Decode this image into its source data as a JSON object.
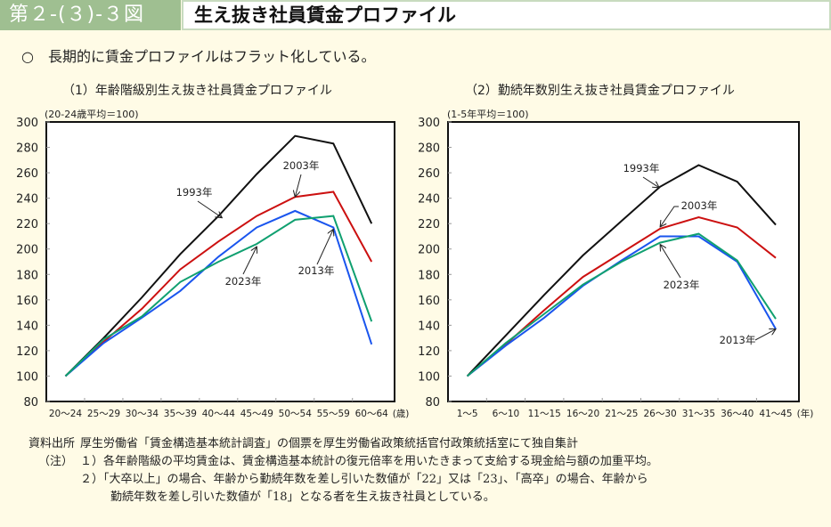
{
  "header": {
    "figure_number": "第２-(３)-３図",
    "title": "生え抜き社員賃金プロファイル"
  },
  "lead": {
    "bullet": "○",
    "text": "長期的に賃金プロファイルはフラット化している。"
  },
  "colors": {
    "1993": "#111111",
    "2003": "#cc1010",
    "2013": "#1a55ee",
    "2023": "#10a070",
    "frame": "#111111"
  },
  "chart_data": [
    {
      "type": "line",
      "title": "（1）年齢階級別生え抜き社員賃金プロファイル",
      "unit_note": "(20-24歳平均＝100)",
      "xlabel": "(歳)",
      "ylabel": "",
      "ylim": [
        80,
        300
      ],
      "yticks": [
        80,
        100,
        120,
        140,
        160,
        180,
        200,
        220,
        240,
        260,
        280,
        300
      ],
      "grid": false,
      "categories": [
        "20～24",
        "25～29",
        "30～34",
        "35～39",
        "40～44",
        "45～49",
        "50～54",
        "55～59",
        "60～64"
      ],
      "series": [
        {
          "name": "1993年",
          "values": [
            100,
            130,
            162,
            196,
            226,
            259,
            289,
            283,
            220
          ]
        },
        {
          "name": "2003年",
          "values": [
            100,
            127,
            153,
            184,
            206,
            226,
            241,
            245,
            190
          ]
        },
        {
          "name": "2013年",
          "values": [
            100,
            126,
            146,
            167,
            194,
            217,
            230,
            217,
            125
          ]
        },
        {
          "name": "2023年",
          "values": [
            100,
            129,
            147,
            174,
            190,
            204,
            223,
            226,
            143
          ]
        }
      ],
      "annotations": [
        {
          "text": "1993年",
          "series": "1993年"
        },
        {
          "text": "2003年",
          "series": "2003年"
        },
        {
          "text": "2013年",
          "series": "2013年"
        },
        {
          "text": "2023年",
          "series": "2023年"
        }
      ]
    },
    {
      "type": "line",
      "title": "（2）勤続年数別生え抜き社員賃金プロファイル",
      "unit_note": "(1-5年平均＝100)",
      "xlabel": "(年)",
      "ylabel": "",
      "ylim": [
        80,
        300
      ],
      "yticks": [
        80,
        100,
        120,
        140,
        160,
        180,
        200,
        220,
        240,
        260,
        280,
        300
      ],
      "grid": false,
      "categories": [
        "1～5",
        "6～10",
        "11～15",
        "16～20",
        "21～25",
        "26～30",
        "31～35",
        "36～40",
        "41～45"
      ],
      "series": [
        {
          "name": "1993年",
          "values": [
            100,
            132,
            164,
            195,
            222,
            249,
            266,
            253,
            219
          ]
        },
        {
          "name": "2003年",
          "values": [
            100,
            125,
            152,
            178,
            197,
            216,
            225,
            217,
            193
          ]
        },
        {
          "name": "2013年",
          "values": [
            100,
            124,
            146,
            171,
            191,
            210,
            210,
            190,
            137
          ]
        },
        {
          "name": "2023年",
          "values": [
            100,
            126,
            149,
            172,
            190,
            205,
            212,
            191,
            145
          ]
        }
      ],
      "annotations": [
        {
          "text": "1993年",
          "series": "1993年"
        },
        {
          "text": "2003年",
          "series": "2003年"
        },
        {
          "text": "2013年",
          "series": "2013年"
        },
        {
          "text": "2023年",
          "series": "2023年"
        }
      ]
    }
  ],
  "notes": {
    "source_label": "資料出所",
    "source_text": "厚生労働省「賃金構造基本統計調査」の個票を厚生労働省政策統括官付政策統括室にて独自集計",
    "note_label": "（注）",
    "note1": "１）各年齢階級の平均賃金は、賃金構造基本統計の復元倍率を用いたきまって支給する現金給与額の加重平均。",
    "note2_line1": "２）「大卒以上」の場合、年齢から勤続年数を差し引いた数値が「22」又は「23」、「高卒」の場合、年齢から",
    "note2_line2": "勤続年数を差し引いた数値が「18」となる者を生え抜き社員としている。"
  }
}
